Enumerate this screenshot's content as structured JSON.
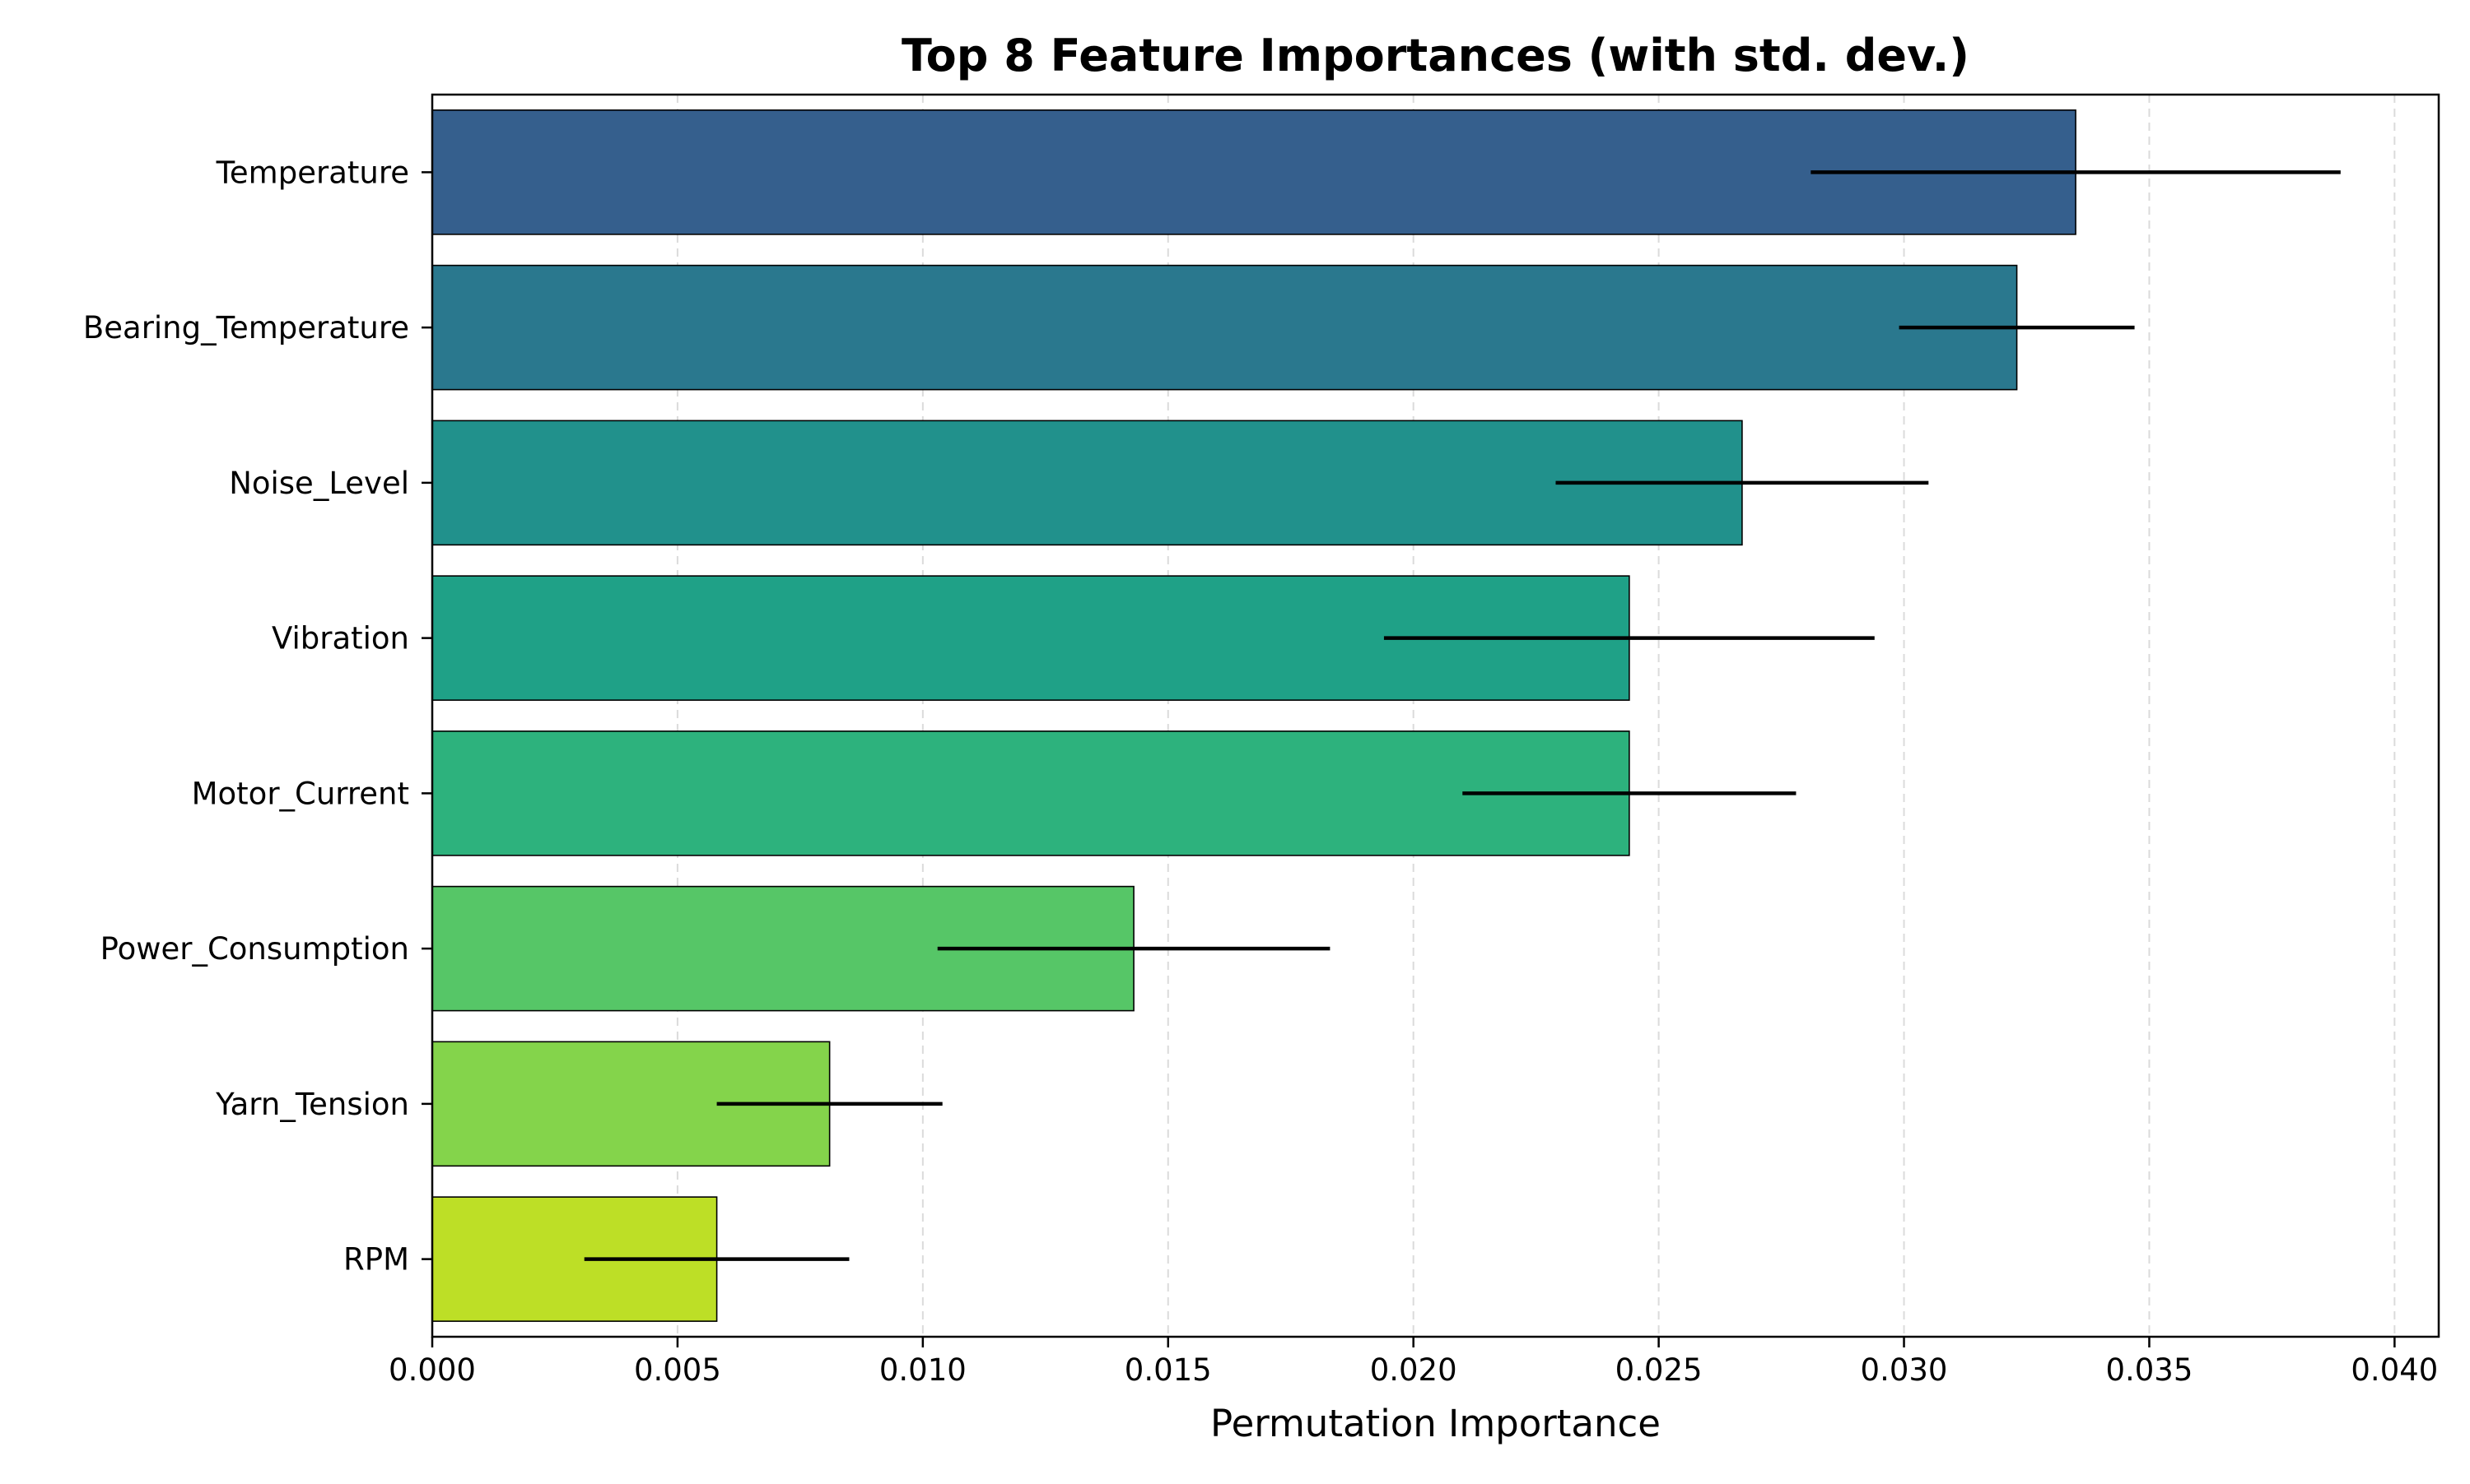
{
  "chart_data": {
    "type": "bar",
    "orientation": "horizontal",
    "title": "Top 8 Feature Importances (with std. dev.)",
    "xlabel": "Permutation Importance",
    "ylabel": "",
    "xlim": [
      0,
      0.0409
    ],
    "x_ticks": [
      0.0,
      0.005,
      0.01,
      0.015,
      0.02,
      0.025,
      0.03,
      0.035,
      0.04
    ],
    "x_tick_labels": [
      "0.000",
      "0.005",
      "0.010",
      "0.015",
      "0.020",
      "0.025",
      "0.030",
      "0.035",
      "0.040"
    ],
    "grid": {
      "x": true,
      "y": false,
      "style": "dashed"
    },
    "legend": "none",
    "categories": [
      "Temperature",
      "Bearing_Temperature",
      "Noise_Level",
      "Vibration",
      "Motor_Current",
      "Power_Consumption",
      "Yarn_Tension",
      "RPM"
    ],
    "values": [
      0.0335,
      0.0323,
      0.0267,
      0.0244,
      0.0244,
      0.0143,
      0.0081,
      0.0058
    ],
    "std_dev": [
      0.0054,
      0.0024,
      0.0038,
      0.005,
      0.0034,
      0.004,
      0.0023,
      0.0027
    ],
    "bar_colors": [
      "#355f8d",
      "#2a788e",
      "#21918c",
      "#1fa187",
      "#2db27d",
      "#56c667",
      "#84d44b",
      "#bddf26"
    ]
  }
}
